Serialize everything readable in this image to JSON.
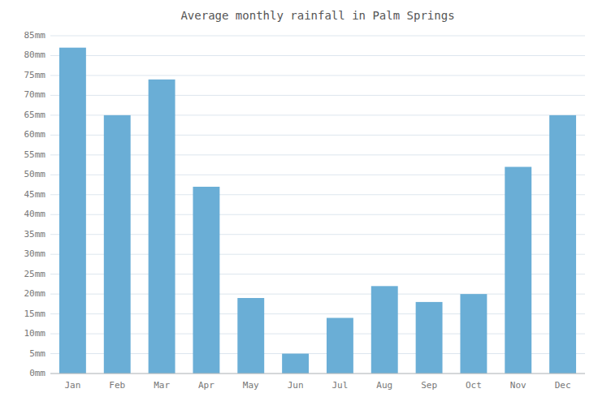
{
  "chart_data": {
    "type": "bar",
    "title": "Average monthly rainfall in Palm Springs",
    "categories": [
      "Jan",
      "Feb",
      "Mar",
      "Apr",
      "May",
      "Jun",
      "Jul",
      "Aug",
      "Sep",
      "Oct",
      "Nov",
      "Dec"
    ],
    "values": [
      82,
      65,
      74,
      47,
      19,
      5,
      14,
      22,
      18,
      20,
      52,
      65
    ],
    "color": "#6aaed6",
    "ylim": [
      0,
      85
    ],
    "yticks": [
      {
        "value": 0,
        "label": "0mm"
      },
      {
        "value": 5,
        "label": "5mm"
      },
      {
        "value": 10,
        "label": "10mm"
      },
      {
        "value": 15,
        "label": "15mm"
      },
      {
        "value": 20,
        "label": "20mm"
      },
      {
        "value": 25,
        "label": "25mm"
      },
      {
        "value": 30,
        "label": "30mm"
      },
      {
        "value": 35,
        "label": "35mm"
      },
      {
        "value": 40,
        "label": "40mm"
      },
      {
        "value": 45,
        "label": "45mm"
      },
      {
        "value": 50,
        "label": "50mm"
      },
      {
        "value": 55,
        "label": "55mm"
      },
      {
        "value": 60,
        "label": "60mm"
      },
      {
        "value": 65,
        "label": "65mm"
      },
      {
        "value": 70,
        "label": "70mm"
      },
      {
        "value": 75,
        "label": "75mm"
      },
      {
        "value": 80,
        "label": "80mm"
      },
      {
        "value": 85,
        "label": "85mm"
      }
    ],
    "grid": true
  }
}
